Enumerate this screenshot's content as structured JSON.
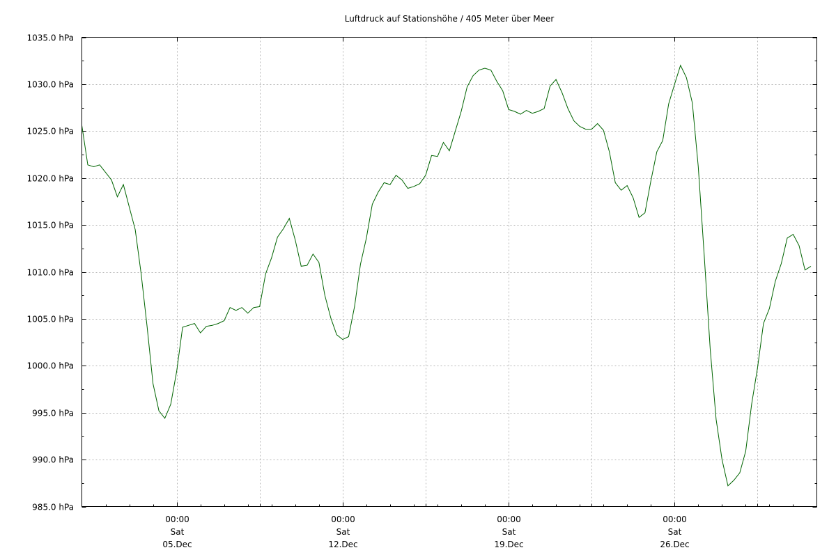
{
  "chart_data": {
    "type": "line",
    "title": "Luftdruck auf Stationshöhe / 405 Meter über Meer",
    "xlabel": "",
    "ylabel": "",
    "ylim": [
      985.0,
      1035.0
    ],
    "yticks": [
      985.0,
      990.0,
      995.0,
      1000.0,
      1005.0,
      1010.0,
      1015.0,
      1020.0,
      1025.0,
      1030.0,
      1035.0
    ],
    "ytick_labels": [
      "985.0 hPa",
      "990.0 hPa",
      "995.0 hPa",
      "1000.0 hPa",
      "1005.0 hPa",
      "1010.0 hPa",
      "1015.0 hPa",
      "1020.0 hPa",
      "1025.0 hPa",
      "1030.0 hPa",
      "1035.0 hPa"
    ],
    "xlim": [
      "2020-12-01T00:00",
      "2021-01-01T00:00"
    ],
    "x_major_ticks": [
      {
        "x": "2020-12-05T00:00",
        "lines": [
          "00:00",
          "Sat",
          "05.Dec"
        ]
      },
      {
        "x": "2020-12-12T00:00",
        "lines": [
          "00:00",
          "Sat",
          "12.Dec"
        ]
      },
      {
        "x": "2020-12-19T00:00",
        "lines": [
          "00:00",
          "Sat",
          "19.Dec"
        ]
      },
      {
        "x": "2020-12-26T00:00",
        "lines": [
          "00:00",
          "Sat",
          "26.Dec"
        ]
      }
    ],
    "x_minor_gridlines": [
      "2020-12-08T12:00",
      "2020-12-15T12:00",
      "2020-12-22T12:00",
      "2020-12-29T12:00"
    ],
    "grid": true,
    "series": [
      {
        "color": "#006400",
        "x": [
          "2020-12-01T00:00",
          "2020-12-01T06:00",
          "2020-12-01T12:00",
          "2020-12-01T18:00",
          "2020-12-02T00:00",
          "2020-12-02T06:00",
          "2020-12-02T12:00",
          "2020-12-02T18:00",
          "2020-12-03T00:00",
          "2020-12-03T06:00",
          "2020-12-03T12:00",
          "2020-12-03T18:00",
          "2020-12-04T00:00",
          "2020-12-04T06:00",
          "2020-12-04T12:00",
          "2020-12-04T18:00",
          "2020-12-05T00:00",
          "2020-12-05T06:00",
          "2020-12-05T12:00",
          "2020-12-05T18:00",
          "2020-12-06T00:00",
          "2020-12-06T06:00",
          "2020-12-06T12:00",
          "2020-12-06T18:00",
          "2020-12-07T00:00",
          "2020-12-07T06:00",
          "2020-12-07T12:00",
          "2020-12-07T18:00",
          "2020-12-08T00:00",
          "2020-12-08T06:00",
          "2020-12-08T12:00",
          "2020-12-08T18:00",
          "2020-12-09T00:00",
          "2020-12-09T06:00",
          "2020-12-09T12:00",
          "2020-12-09T18:00",
          "2020-12-10T00:00",
          "2020-12-10T06:00",
          "2020-12-10T12:00",
          "2020-12-10T18:00",
          "2020-12-11T00:00",
          "2020-12-11T06:00",
          "2020-12-11T12:00",
          "2020-12-11T18:00",
          "2020-12-12T00:00",
          "2020-12-12T06:00",
          "2020-12-12T12:00",
          "2020-12-12T18:00",
          "2020-12-13T00:00",
          "2020-12-13T06:00",
          "2020-12-13T12:00",
          "2020-12-13T18:00",
          "2020-12-14T00:00",
          "2020-12-14T06:00",
          "2020-12-14T12:00",
          "2020-12-14T18:00",
          "2020-12-15T00:00",
          "2020-12-15T06:00",
          "2020-12-15T12:00",
          "2020-12-15T18:00",
          "2020-12-16T00:00",
          "2020-12-16T06:00",
          "2020-12-16T12:00",
          "2020-12-16T18:00",
          "2020-12-17T00:00",
          "2020-12-17T06:00",
          "2020-12-17T12:00",
          "2020-12-17T18:00",
          "2020-12-18T00:00",
          "2020-12-18T06:00",
          "2020-12-18T12:00",
          "2020-12-18T18:00",
          "2020-12-19T00:00",
          "2020-12-19T06:00",
          "2020-12-19T12:00",
          "2020-12-19T18:00",
          "2020-12-20T00:00",
          "2020-12-20T06:00",
          "2020-12-20T12:00",
          "2020-12-20T18:00",
          "2020-12-21T00:00",
          "2020-12-21T06:00",
          "2020-12-21T12:00",
          "2020-12-21T18:00",
          "2020-12-22T00:00",
          "2020-12-22T06:00",
          "2020-12-22T12:00",
          "2020-12-22T18:00",
          "2020-12-23T00:00",
          "2020-12-23T06:00",
          "2020-12-23T12:00",
          "2020-12-23T18:00",
          "2020-12-24T00:00",
          "2020-12-24T06:00",
          "2020-12-24T12:00",
          "2020-12-24T18:00",
          "2020-12-25T00:00",
          "2020-12-25T06:00",
          "2020-12-25T12:00",
          "2020-12-25T18:00",
          "2020-12-26T00:00",
          "2020-12-26T06:00",
          "2020-12-26T12:00",
          "2020-12-26T18:00",
          "2020-12-27T00:00",
          "2020-12-27T06:00",
          "2020-12-27T12:00",
          "2020-12-27T18:00",
          "2020-12-28T00:00",
          "2020-12-28T06:00",
          "2020-12-28T12:00",
          "2020-12-28T18:00",
          "2020-12-29T00:00",
          "2020-12-29T06:00",
          "2020-12-29T12:00",
          "2020-12-29T18:00",
          "2020-12-30T00:00",
          "2020-12-30T06:00",
          "2020-12-30T12:00",
          "2020-12-30T18:00",
          "2020-12-31T00:00",
          "2020-12-31T06:00",
          "2020-12-31T12:00",
          "2020-12-31T18:00"
        ],
        "values": [
          1025.6,
          1021.4,
          1021.2,
          1021.4,
          1020.6,
          1019.8,
          1018.0,
          1019.3,
          1016.9,
          1014.5,
          1009.8,
          1004.2,
          998.1,
          995.2,
          994.4,
          995.9,
          999.4,
          1004.1,
          1004.3,
          1004.5,
          1003.5,
          1004.2,
          1004.3,
          1004.5,
          1004.8,
          1006.2,
          1005.9,
          1006.2,
          1005.6,
          1006.2,
          1006.3,
          1009.8,
          1011.5,
          1013.7,
          1014.6,
          1015.7,
          1013.4,
          1010.6,
          1010.7,
          1011.9,
          1011.0,
          1007.5,
          1005.1,
          1003.3,
          1002.8,
          1003.1,
          1006.3,
          1010.8,
          1013.6,
          1017.2,
          1018.5,
          1019.5,
          1019.3,
          1020.3,
          1019.8,
          1018.9,
          1019.1,
          1019.4,
          1020.3,
          1022.4,
          1022.3,
          1023.8,
          1022.9,
          1025.0,
          1027.1,
          1029.7,
          1030.9,
          1031.5,
          1031.7,
          1031.5,
          1030.3,
          1029.3,
          1027.3,
          1027.1,
          1026.8,
          1027.2,
          1026.9,
          1027.1,
          1027.4,
          1029.8,
          1030.5,
          1029.1,
          1027.4,
          1026.1,
          1025.5,
          1025.2,
          1025.2,
          1025.8,
          1025.1,
          1022.8,
          1019.5,
          1018.7,
          1019.2,
          1017.9,
          1015.8,
          1016.3,
          1019.7,
          1022.8,
          1024.0,
          1027.9,
          1030.0,
          1032.0,
          1030.7,
          1028.0,
          1021.2,
          1011.8,
          1001.8,
          994.3,
          990.0,
          987.2,
          987.8,
          988.6,
          990.9,
          995.9,
          999.8,
          1004.5,
          1006.1,
          1009.0,
          1010.9,
          1013.6,
          1014.0,
          1012.8,
          1010.2,
          1010.6
        ]
      }
    ]
  }
}
